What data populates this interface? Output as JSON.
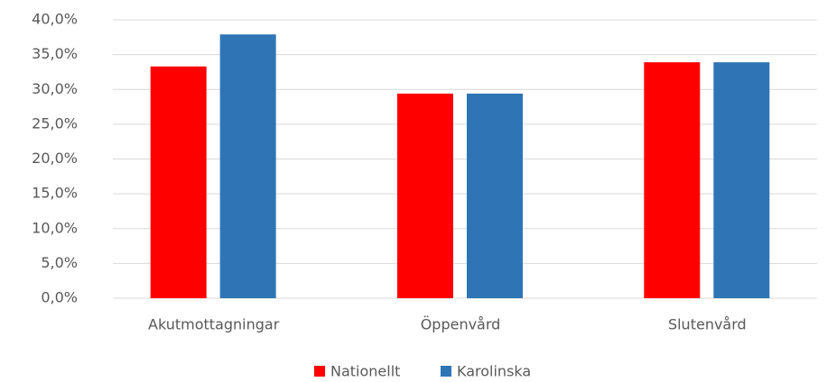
{
  "chart_data": {
    "type": "bar",
    "categories": [
      "Akutmottagningar",
      "Öppenvård",
      "Slutenvård"
    ],
    "series": [
      {
        "name": "Nationellt",
        "color": "#ff0000",
        "values": [
          33.3,
          29.4,
          33.9
        ]
      },
      {
        "name": "Karolinska",
        "color": "#2e75b6",
        "values": [
          37.9,
          29.4,
          33.9
        ]
      }
    ],
    "ylim": [
      0,
      40
    ],
    "yticks": [
      {
        "value": 0,
        "label": "0,0%"
      },
      {
        "value": 5,
        "label": "5,0%"
      },
      {
        "value": 10,
        "label": "10,0%"
      },
      {
        "value": 15,
        "label": "15,0%"
      },
      {
        "value": 20,
        "label": "20,0%"
      },
      {
        "value": 25,
        "label": "25,0%"
      },
      {
        "value": 30,
        "label": "30,0%"
      },
      {
        "value": 35,
        "label": "35,0%"
      },
      {
        "value": 40,
        "label": "40,0%"
      }
    ],
    "grid": true,
    "legend": "bottom"
  }
}
